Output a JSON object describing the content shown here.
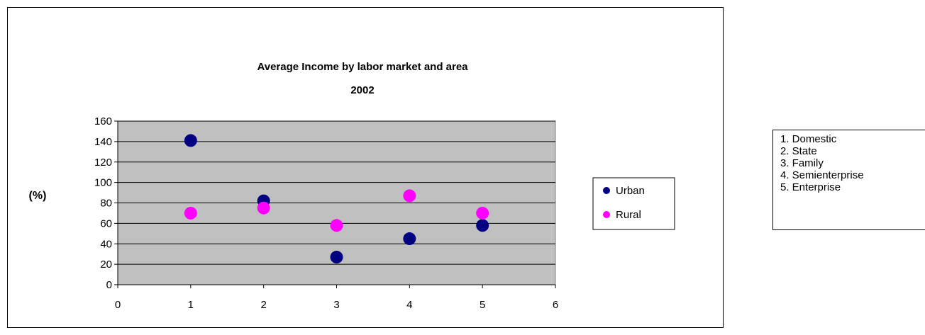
{
  "chart_data": {
    "type": "scatter",
    "title": "Average Income by labor market and area",
    "subtitle": "2002",
    "xlabel": "",
    "ylabel": "(%)",
    "xlim": [
      0,
      6
    ],
    "ylim": [
      0,
      160
    ],
    "x_ticks": [
      0,
      1,
      2,
      3,
      4,
      5,
      6
    ],
    "y_ticks": [
      0,
      20,
      40,
      60,
      80,
      100,
      120,
      140,
      160
    ],
    "grid": true,
    "plot_background": "#C0C0C0",
    "legend_position": "right",
    "series": [
      {
        "name": "Urban",
        "color": "#000080",
        "x": [
          1,
          2,
          3,
          4,
          5
        ],
        "y": [
          141,
          82,
          27,
          45,
          58
        ]
      },
      {
        "name": "Rural",
        "color": "#FF00FF",
        "x": [
          1,
          2,
          3,
          4,
          5
        ],
        "y": [
          70,
          75,
          58,
          87,
          70
        ]
      }
    ]
  },
  "notes": {
    "items": [
      "1. Domestic",
      "2. State",
      "3. Family",
      "4. Semienterprise",
      "5. Enterprise"
    ]
  }
}
